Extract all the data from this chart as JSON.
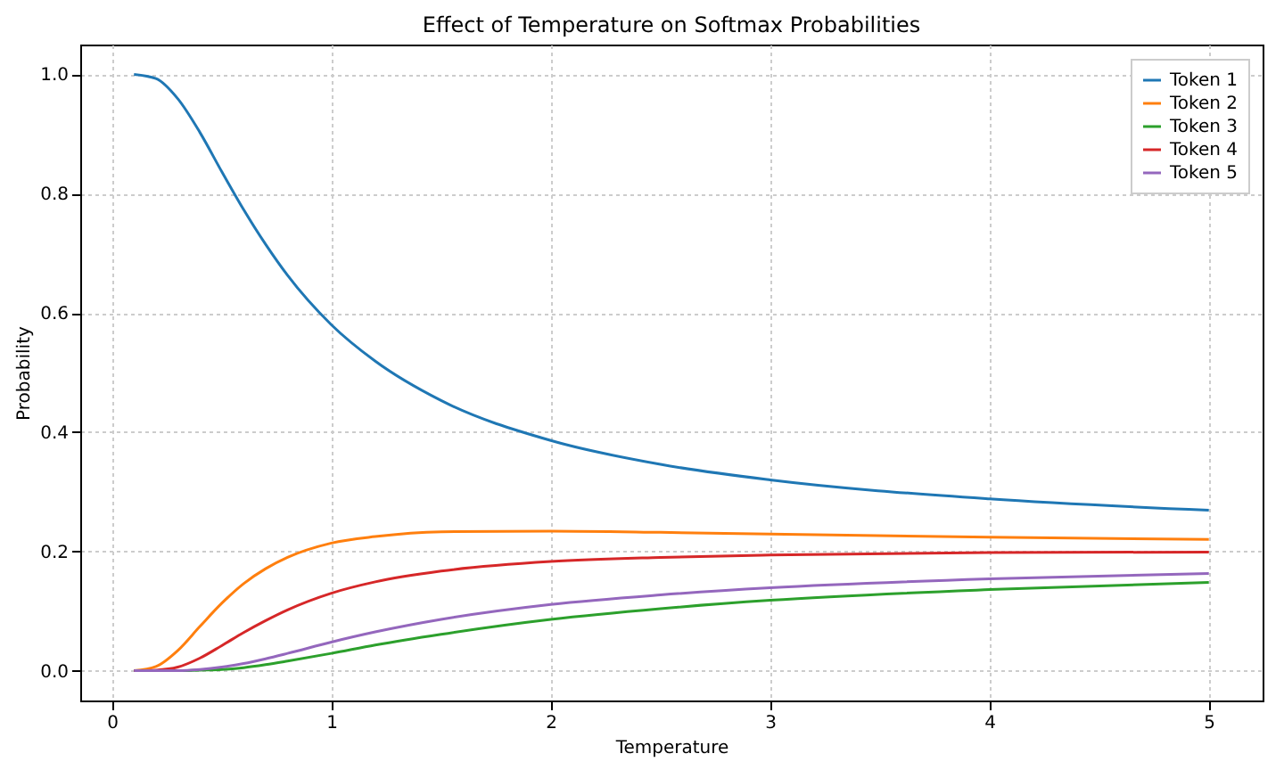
{
  "chart_data": {
    "type": "line",
    "title": "Effect of Temperature on Softmax Probabilities",
    "xlabel": "Temperature",
    "ylabel": "Probability",
    "x": [
      0.1,
      0.2,
      0.3,
      0.4,
      0.5,
      0.6,
      0.7,
      0.8,
      1.0,
      1.2,
      1.5,
      2.0,
      2.5,
      3.0,
      4.0,
      5.0
    ],
    "series": [
      {
        "name": "Token 1",
        "color": "#1f77b4",
        "values": [
          1.0,
          0.993,
          0.959,
          0.903,
          0.837,
          0.773,
          0.715,
          0.663,
          0.58,
          0.519,
          0.453,
          0.386,
          0.346,
          0.32,
          0.288,
          0.269
        ]
      },
      {
        "name": "Token 2",
        "color": "#ff7f0e",
        "values": [
          0.0,
          0.007,
          0.034,
          0.074,
          0.113,
          0.146,
          0.171,
          0.19,
          0.214,
          0.225,
          0.233,
          0.234,
          0.232,
          0.229,
          0.224,
          0.22
        ]
      },
      {
        "name": "Token 3",
        "color": "#2ca02c",
        "values": [
          0.0,
          0.0,
          0.0,
          0.001,
          0.002,
          0.005,
          0.01,
          0.016,
          0.029,
          0.043,
          0.061,
          0.086,
          0.104,
          0.118,
          0.136,
          0.148
        ]
      },
      {
        "name": "Token 4",
        "color": "#d62728",
        "values": [
          0.0,
          0.001,
          0.006,
          0.021,
          0.042,
          0.064,
          0.084,
          0.102,
          0.13,
          0.149,
          0.167,
          0.183,
          0.19,
          0.194,
          0.198,
          0.199
        ]
      },
      {
        "name": "Token 5",
        "color": "#9467bd",
        "values": [
          0.0,
          0.0,
          0.0,
          0.002,
          0.006,
          0.012,
          0.02,
          0.029,
          0.048,
          0.065,
          0.086,
          0.111,
          0.127,
          0.139,
          0.154,
          0.163
        ]
      }
    ],
    "xlim": [
      -0.145,
      5.245
    ],
    "xticks": [
      0,
      1,
      2,
      3,
      4,
      5
    ],
    "ylim": [
      -0.05,
      1.05
    ],
    "yticks": [
      {
        "value": 0,
        "label": "0.0"
      },
      {
        "value": 0.2,
        "label": "0.2"
      },
      {
        "value": 0.4,
        "label": "0.4"
      },
      {
        "value": 0.6,
        "label": "0.6"
      },
      {
        "value": 0.8,
        "label": "0.8"
      },
      {
        "value": 1.0,
        "label": "1.0"
      }
    ],
    "grid": true,
    "legend": "top right",
    "line_style": "solid",
    "marker": "none"
  }
}
